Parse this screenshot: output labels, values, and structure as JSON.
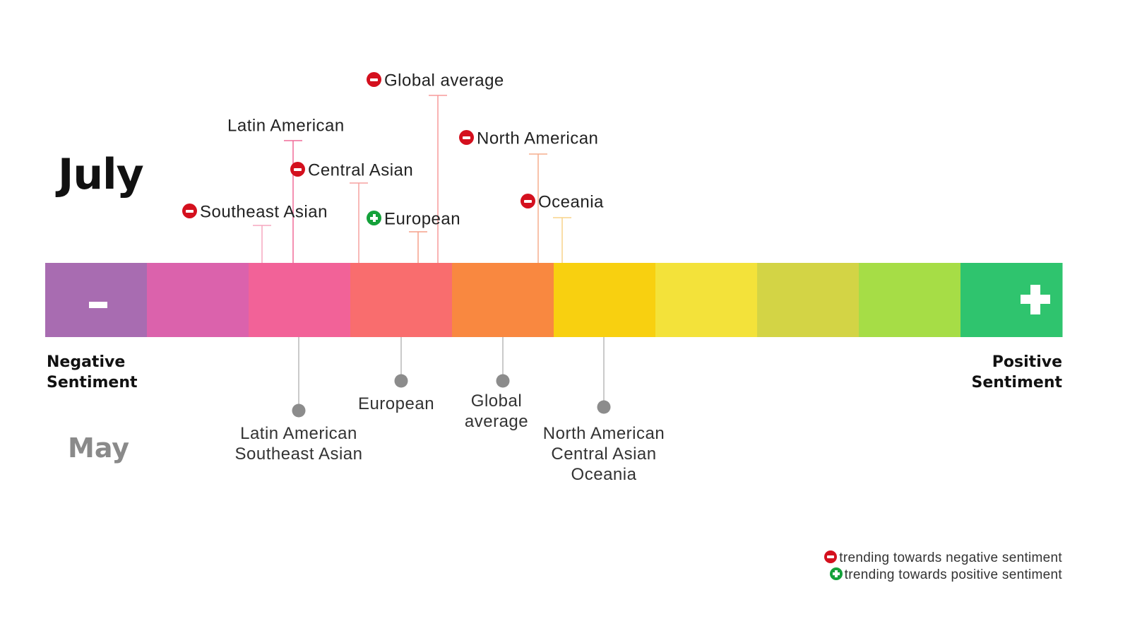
{
  "scale": {
    "segment_colors": [
      "#a86cb1",
      "#db62ac",
      "#f26298",
      "#f96d6e",
      "#f98840",
      "#f8d010",
      "#f3e23a",
      "#d3d445",
      "#a6dd46",
      "#2fc46e"
    ],
    "negative_symbol": "-",
    "positive_symbol": "+",
    "negative_label": "Negative\nSentiment",
    "positive_label": "Positive\nSentiment"
  },
  "months": {
    "current": "July",
    "previous": "May"
  },
  "july_markers": [
    {
      "label": "Southeast Asian",
      "trend": "negative",
      "trend_icon": "minus-circle-icon",
      "line_color": "#f6a7bf"
    },
    {
      "label": "Latin American",
      "trend": "none",
      "trend_icon": "",
      "line_color": "#f06c98"
    },
    {
      "label": "Central Asian",
      "trend": "negative",
      "trend_icon": "minus-circle-icon",
      "line_color": "#f6a2a0"
    },
    {
      "label": "European",
      "trend": "positive",
      "trend_icon": "plus-circle-icon",
      "line_color": "#f5a08a"
    },
    {
      "label": "Global average",
      "trend": "negative",
      "trend_icon": "minus-circle-icon",
      "line_color": "#f79a9a"
    },
    {
      "label": "North American",
      "trend": "negative",
      "trend_icon": "minus-circle-icon",
      "line_color": "#f6ae8e"
    },
    {
      "label": "Oceania",
      "trend": "negative",
      "trend_icon": "minus-circle-icon",
      "line_color": "#f8d38a"
    }
  ],
  "may_markers": [
    {
      "label": "Latin American\nSoutheast Asian"
    },
    {
      "label": "European"
    },
    {
      "label": "Global\naverage"
    },
    {
      "label": "North American\nCentral Asian\nOceania"
    }
  ],
  "legend": {
    "negative": "trending towards negative sentiment",
    "positive": "trending towards positive sentiment"
  },
  "colors": {
    "negative_trend": "#d4101e",
    "positive_trend": "#14a13a",
    "may_marker": "#8c8c8c"
  }
}
